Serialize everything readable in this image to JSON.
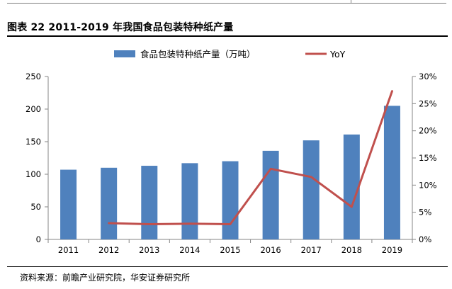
{
  "figure": {
    "title": "图表 22 2011-2019 年我国食品包装特种纸产量",
    "source": "资料来源：前瞻产业研究院，华安证券研究所"
  },
  "colors": {
    "bar": "#4f81bd",
    "line": "#c0504d",
    "axis": "#868686"
  },
  "chart_data": {
    "type": "bar",
    "title": "",
    "categories": [
      "2011",
      "2012",
      "2013",
      "2014",
      "2015",
      "2016",
      "2017",
      "2018",
      "2019"
    ],
    "series": [
      {
        "name": "食品包装特种纸产量（万吨）",
        "type": "bar",
        "axis": "left",
        "values": [
          107,
          110,
          113,
          117,
          120,
          136,
          152,
          161,
          205
        ]
      },
      {
        "name": "YoY",
        "type": "line",
        "axis": "right",
        "values": [
          null,
          3.0,
          2.8,
          2.9,
          2.8,
          13.0,
          11.5,
          6.0,
          27.3
        ]
      }
    ],
    "ylim": [
      0,
      250
    ],
    "yticks": [
      0,
      50,
      100,
      150,
      200,
      250
    ],
    "y2lim": [
      0,
      30
    ],
    "y2ticks": [
      "0%",
      "5%",
      "10%",
      "15%",
      "20%",
      "25%",
      "30%"
    ],
    "legend": "top"
  }
}
